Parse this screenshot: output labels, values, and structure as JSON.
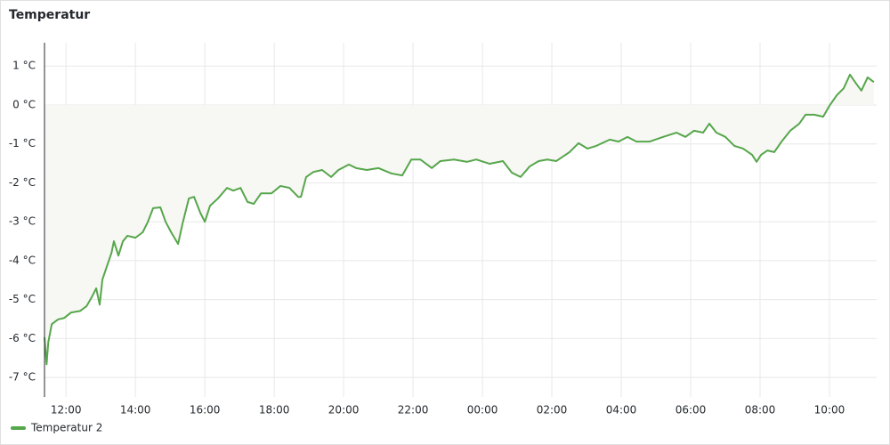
{
  "chart_data": {
    "type": "line",
    "title": "Temperatur",
    "x": [
      11.38,
      11.44,
      11.49,
      11.59,
      11.77,
      11.95,
      12.15,
      12.41,
      12.59,
      12.74,
      12.87,
      12.97,
      13.05,
      13.18,
      13.31,
      13.38,
      13.51,
      13.64,
      13.77,
      14.0,
      14.21,
      14.36,
      14.51,
      14.72,
      14.87,
      15.03,
      15.23,
      15.36,
      15.54,
      15.69,
      15.87,
      16.0,
      16.15,
      16.38,
      16.64,
      16.82,
      17.03,
      17.23,
      17.41,
      17.62,
      17.92,
      18.18,
      18.44,
      18.69,
      18.77,
      18.92,
      19.13,
      19.38,
      19.64,
      19.85,
      20.15,
      20.36,
      20.67,
      21.0,
      21.38,
      21.69,
      21.95,
      22.21,
      22.54,
      22.79,
      23.18,
      23.56,
      23.82,
      24.21,
      24.59,
      24.85,
      25.1,
      25.36,
      25.62,
      25.87,
      26.13,
      26.51,
      26.77,
      27.03,
      27.28,
      27.67,
      27.92,
      28.18,
      28.44,
      28.82,
      29.21,
      29.59,
      29.85,
      30.1,
      30.36,
      30.54,
      30.74,
      31.0,
      31.26,
      31.51,
      31.77,
      31.9,
      32.03,
      32.21,
      32.41,
      32.62,
      32.87,
      33.13,
      33.31,
      33.56,
      33.82,
      34.0,
      34.21,
      34.41,
      34.59,
      34.77,
      34.92,
      35.1,
      35.28
    ],
    "series": [
      {
        "name": "Temperatur 2",
        "color": "#56a64b",
        "fill_color": "#f7f7f4",
        "values": [
          -5.97,
          -6.66,
          -6.09,
          -5.63,
          -5.51,
          -5.47,
          -5.33,
          -5.29,
          -5.17,
          -4.94,
          -4.71,
          -5.13,
          -4.48,
          -4.14,
          -3.8,
          -3.5,
          -3.87,
          -3.5,
          -3.36,
          -3.41,
          -3.27,
          -3.0,
          -2.65,
          -2.63,
          -3.0,
          -3.27,
          -3.57,
          -3.04,
          -2.4,
          -2.36,
          -2.77,
          -3.0,
          -2.59,
          -2.4,
          -2.13,
          -2.2,
          -2.13,
          -2.49,
          -2.54,
          -2.27,
          -2.27,
          -2.08,
          -2.13,
          -2.36,
          -2.36,
          -1.85,
          -1.72,
          -1.67,
          -1.85,
          -1.67,
          -1.53,
          -1.62,
          -1.67,
          -1.62,
          -1.76,
          -1.81,
          -1.4,
          -1.4,
          -1.62,
          -1.44,
          -1.4,
          -1.46,
          -1.4,
          -1.51,
          -1.44,
          -1.74,
          -1.85,
          -1.58,
          -1.44,
          -1.4,
          -1.44,
          -1.21,
          -0.98,
          -1.12,
          -1.05,
          -0.89,
          -0.94,
          -0.82,
          -0.94,
          -0.94,
          -0.82,
          -0.71,
          -0.82,
          -0.66,
          -0.71,
          -0.48,
          -0.71,
          -0.82,
          -1.05,
          -1.12,
          -1.28,
          -1.46,
          -1.28,
          -1.17,
          -1.21,
          -0.94,
          -0.66,
          -0.48,
          -0.25,
          -0.25,
          -0.3,
          -0.02,
          0.25,
          0.43,
          0.78,
          0.55,
          0.37,
          0.71,
          0.59
        ]
      }
    ],
    "xlim": [
      11.38,
      35.36
    ],
    "xticks": [
      {
        "value": 12,
        "label": "12:00"
      },
      {
        "value": 14,
        "label": "14:00"
      },
      {
        "value": 16,
        "label": "16:00"
      },
      {
        "value": 18,
        "label": "18:00"
      },
      {
        "value": 20,
        "label": "20:00"
      },
      {
        "value": 22,
        "label": "22:00"
      },
      {
        "value": 24,
        "label": "00:00"
      },
      {
        "value": 26,
        "label": "02:00"
      },
      {
        "value": 28,
        "label": "04:00"
      },
      {
        "value": 30,
        "label": "06:00"
      },
      {
        "value": 32,
        "label": "08:00"
      },
      {
        "value": 34,
        "label": "10:00"
      }
    ],
    "ylim": [
      -7.5,
      1.6
    ],
    "yticks": [
      {
        "value": -7,
        "label": "-7 °C"
      },
      {
        "value": -6,
        "label": "-6 °C"
      },
      {
        "value": -5,
        "label": "-5 °C"
      },
      {
        "value": -4,
        "label": "-4 °C"
      },
      {
        "value": -3,
        "label": "-3 °C"
      },
      {
        "value": -2,
        "label": "-2 °C"
      },
      {
        "value": -1,
        "label": "-1 °C"
      },
      {
        "value": 0,
        "label": "0 °C"
      },
      {
        "value": 1,
        "label": "1 °C"
      }
    ],
    "grid": true
  }
}
